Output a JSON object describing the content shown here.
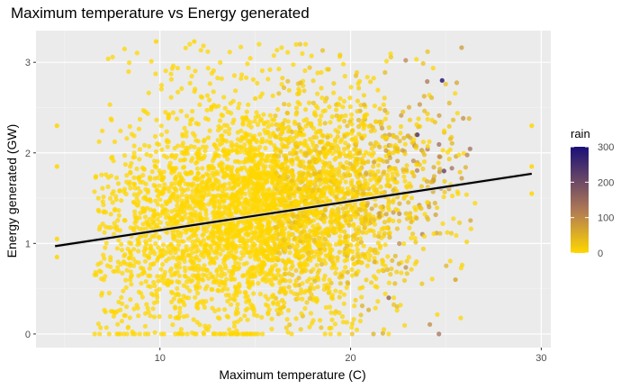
{
  "chart_data": {
    "type": "scatter",
    "title": "Maximum temperature vs Energy generated",
    "xlabel": "Maximum temperature (C)",
    "ylabel": "Energy generated (GW)",
    "xlim": [
      3.5,
      30.5
    ],
    "ylim": [
      -0.15,
      3.35
    ],
    "x_ticks": [
      10,
      20,
      30
    ],
    "y_ticks": [
      0,
      1,
      2,
      3
    ],
    "grid": true,
    "background": "#ebebeb",
    "color_scale": {
      "name": "rain",
      "min": 0,
      "max": 300,
      "ticks": [
        0,
        100,
        200,
        300
      ],
      "low_color": "#ffd700",
      "mid_color": "#b07a55",
      "high_color": "#1a0f78"
    },
    "trend_line": {
      "x": [
        4.5,
        29.5
      ],
      "y": [
        0.97,
        1.77
      ],
      "color": "#000000"
    },
    "point_color_default": "#ffd700",
    "points_sample": [
      {
        "x": 4.6,
        "y": 2.3,
        "rain": 0
      },
      {
        "x": 4.6,
        "y": 1.85,
        "rain": 0
      },
      {
        "x": 4.6,
        "y": 1.05,
        "rain": 0
      },
      {
        "x": 4.6,
        "y": 0.85,
        "rain": 0
      },
      {
        "x": 9.8,
        "y": 3.23,
        "rain": 0
      },
      {
        "x": 11.8,
        "y": 3.23,
        "rain": 0
      },
      {
        "x": 15.0,
        "y": 2.6,
        "rain": 5
      },
      {
        "x": 24.8,
        "y": 2.8,
        "rain": 280
      },
      {
        "x": 23.5,
        "y": 2.2,
        "rain": 230
      },
      {
        "x": 24.9,
        "y": 1.8,
        "rain": 200
      },
      {
        "x": 22.0,
        "y": 0.4,
        "rain": 150
      },
      {
        "x": 25.5,
        "y": 0.6,
        "rain": 60
      },
      {
        "x": 29.5,
        "y": 2.3,
        "rain": 0
      },
      {
        "x": 29.5,
        "y": 1.85,
        "rain": 0
      },
      {
        "x": 29.5,
        "y": 1.55,
        "rain": 0
      }
    ]
  }
}
